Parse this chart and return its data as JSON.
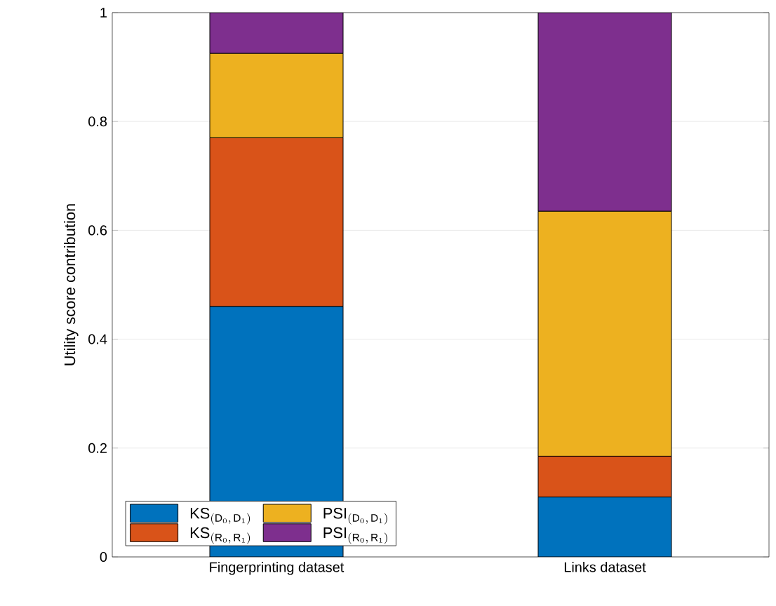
{
  "chart_data": {
    "type": "bar",
    "stacked": true,
    "ylabel": "Utility score contribution",
    "categories": [
      "Fingerprinting dataset",
      "Links dataset"
    ],
    "series": [
      {
        "name": "\\mathrm{KS}_{(\\mathrm{D}_{0},\\,\\mathrm{D}_{1})}",
        "color": "#0072bd",
        "values": [
          0.46,
          0.11
        ]
      },
      {
        "name": "\\mathrm{KS}_{(\\mathrm{R}_{0},\\,\\mathrm{R}_{1})}",
        "color": "#d95319",
        "values": [
          0.31,
          0.075
        ]
      },
      {
        "name": "\\mathrm{PSI}_{(\\mathrm{D}_{0},\\,\\mathrm{D}_{1})}",
        "color": "#edb120",
        "values": [
          0.155,
          0.45
        ]
      },
      {
        "name": "\\mathrm{PSI}_{(\\mathrm{R}_{0},\\,\\mathrm{R}_{1})}",
        "color": "#7e2f8e",
        "values": [
          0.075,
          0.365
        ]
      }
    ],
    "ylim": [
      0,
      1
    ],
    "yticks": [
      0,
      0.2,
      0.4,
      0.6,
      0.8,
      1
    ],
    "grid": "y",
    "legend": "bottom left"
  }
}
